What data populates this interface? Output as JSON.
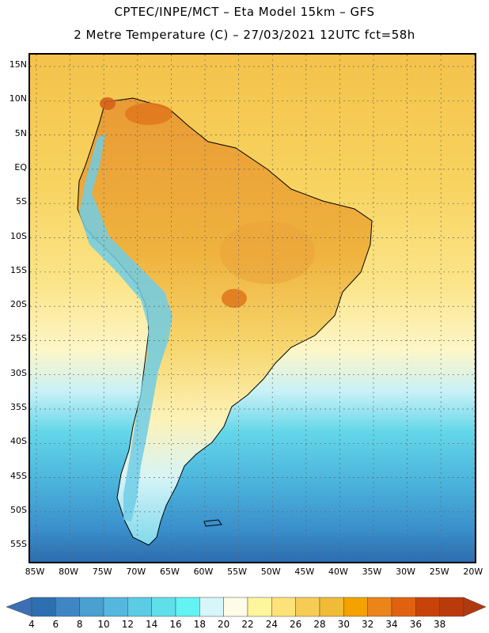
{
  "title_line1": "CPTEC/INPE/MCT –  Eta Model 15km – GFS",
  "title_line2": "2 Metre Temperature (C) – 27/03/2021 12UTC fct=58h",
  "lat_labels": [
    "15N",
    "10N",
    "5N",
    "EQ",
    "5S",
    "10S",
    "15S",
    "20S",
    "25S",
    "30S",
    "35S",
    "40S",
    "45S",
    "50S",
    "55S"
  ],
  "lon_labels": [
    "85W",
    "80W",
    "75W",
    "70W",
    "65W",
    "60W",
    "55W",
    "50W",
    "45W",
    "40W",
    "35W",
    "30W",
    "25W",
    "20W"
  ],
  "colorbar": {
    "levels": [
      "4",
      "6",
      "8",
      "10",
      "12",
      "14",
      "16",
      "18",
      "20",
      "22",
      "24",
      "26",
      "28",
      "30",
      "32",
      "34",
      "36",
      "38"
    ],
    "colors": [
      "#2e6fb1",
      "#3f86c4",
      "#49a0d1",
      "#55b7de",
      "#5ccbe4",
      "#5fdfe9",
      "#63f3f3",
      "#d7f6fa",
      "#fefbe6",
      "#fef69c",
      "#fde27a",
      "#f6cc55",
      "#f0bb37",
      "#f3a200",
      "#eb8419",
      "#e06210",
      "#c84308",
      "#b93b0c"
    ],
    "under_color": "#3c6fb3",
    "over_color": "#b03a10"
  },
  "colors": {
    "ocean_warm": "#f6c94a",
    "ocean_mid": "#f9df7b",
    "ocean_cool": "#63d4e8",
    "ocean_cold": "#2f7ab9",
    "land": "#efb63d",
    "andes": "#5fbfe0",
    "hot": "#e48a2a"
  }
}
